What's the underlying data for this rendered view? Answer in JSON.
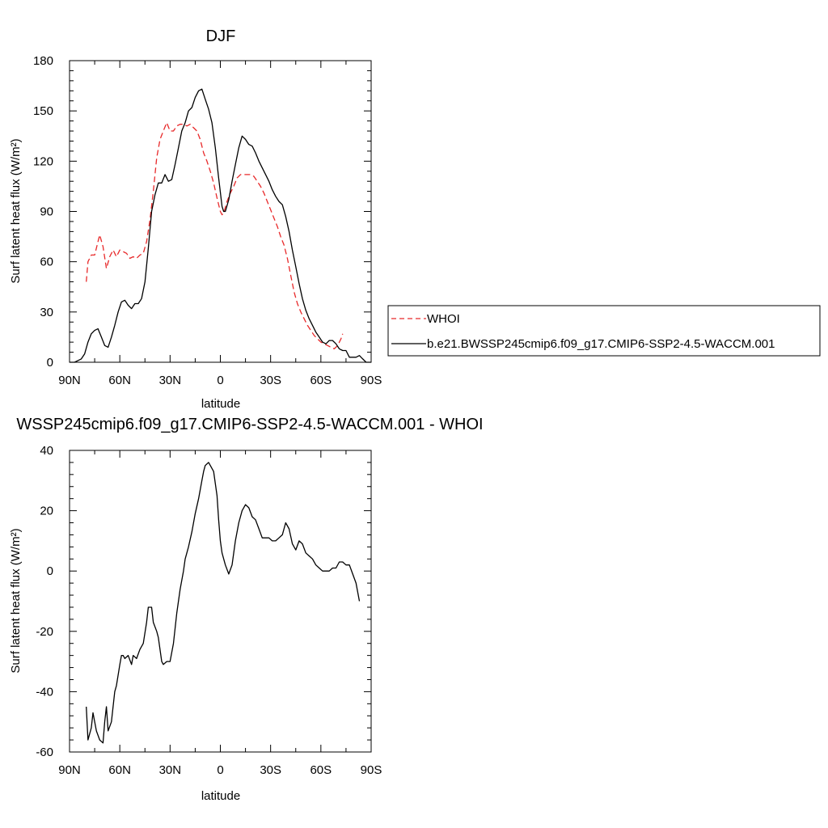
{
  "chart_data": [
    {
      "type": "line",
      "title": "DJF",
      "xlabel": "latitude",
      "ylabel": "Surf latent heat flux (W/m²)",
      "xlim": [
        90,
        -90
      ],
      "ylim": [
        0,
        180
      ],
      "xticks": [
        90,
        60,
        30,
        0,
        -30,
        -60,
        -90
      ],
      "xtick_labels": [
        "90N",
        "60N",
        "30N",
        "0",
        "30S",
        "60S",
        "90S"
      ],
      "yticks": [
        0,
        30,
        60,
        90,
        120,
        150,
        180
      ],
      "ytick_labels": [
        "0",
        "30",
        "60",
        "90",
        "120",
        "150",
        "180"
      ],
      "legend_position": "right",
      "series": [
        {
          "name": "WHOI",
          "color": "#e8292a",
          "dash": true,
          "points": [
            [
              80,
              48
            ],
            [
              79,
              60
            ],
            [
              77,
              64
            ],
            [
              75,
              64
            ],
            [
              73,
              72
            ],
            [
              72,
              76
            ],
            [
              70,
              69
            ],
            [
              68,
              56
            ],
            [
              66,
              63
            ],
            [
              64,
              67
            ],
            [
              62,
              63
            ],
            [
              60,
              67
            ],
            [
              58,
              66
            ],
            [
              56,
              65
            ],
            [
              54,
              62
            ],
            [
              52,
              63
            ],
            [
              50,
              62
            ],
            [
              48,
              64
            ],
            [
              46,
              65
            ],
            [
              44,
              72
            ],
            [
              42,
              85
            ],
            [
              40,
              102
            ],
            [
              38,
              122
            ],
            [
              36,
              133
            ],
            [
              34,
              138
            ],
            [
              32,
              143
            ],
            [
              30,
              138
            ],
            [
              28,
              138
            ],
            [
              26,
              141
            ],
            [
              24,
              142
            ],
            [
              22,
              142
            ],
            [
              20,
              141
            ],
            [
              18,
              142
            ],
            [
              16,
              140
            ],
            [
              14,
              138
            ],
            [
              12,
              133
            ],
            [
              10,
              125
            ],
            [
              8,
              120
            ],
            [
              6,
              114
            ],
            [
              4,
              107
            ],
            [
              2,
              98
            ],
            [
              0,
              90
            ],
            [
              -1,
              88
            ],
            [
              -2,
              89
            ],
            [
              -4,
              96
            ],
            [
              -6,
              101
            ],
            [
              -8,
              105
            ],
            [
              -10,
              110
            ],
            [
              -12,
              112
            ],
            [
              -14,
              112
            ],
            [
              -16,
              112
            ],
            [
              -18,
              112
            ],
            [
              -20,
              111
            ],
            [
              -22,
              108
            ],
            [
              -24,
              105
            ],
            [
              -26,
              101
            ],
            [
              -28,
              96
            ],
            [
              -30,
              91
            ],
            [
              -32,
              86
            ],
            [
              -34,
              81
            ],
            [
              -36,
              75
            ],
            [
              -38,
              70
            ],
            [
              -40,
              62
            ],
            [
              -42,
              52
            ],
            [
              -44,
              42
            ],
            [
              -46,
              35
            ],
            [
              -48,
              30
            ],
            [
              -50,
              26
            ],
            [
              -52,
              22
            ],
            [
              -54,
              19
            ],
            [
              -56,
              16
            ],
            [
              -58,
              14
            ],
            [
              -60,
              12
            ],
            [
              -62,
              11
            ],
            [
              -64,
              10
            ],
            [
              -66,
              9
            ],
            [
              -68,
              8
            ],
            [
              -70,
              10
            ],
            [
              -72,
              14
            ],
            [
              -73,
              17
            ]
          ]
        },
        {
          "name": "b.e21.BWSSP245cmip6.f09_g17.CMIP6-SSP2-4.5-WACCM.001",
          "color": "#000000",
          "dash": false,
          "points": [
            [
              90,
              0
            ],
            [
              87,
              0
            ],
            [
              85,
              1
            ],
            [
              83,
              2
            ],
            [
              81,
              5
            ],
            [
              79,
              12
            ],
            [
              77,
              17
            ],
            [
              75,
              19
            ],
            [
              73,
              20
            ],
            [
              71,
              15
            ],
            [
              69,
              10
            ],
            [
              67,
              9
            ],
            [
              65,
              15
            ],
            [
              63,
              22
            ],
            [
              61,
              30
            ],
            [
              59,
              36
            ],
            [
              57,
              37
            ],
            [
              55,
              34
            ],
            [
              53,
              32
            ],
            [
              51,
              35
            ],
            [
              49,
              35
            ],
            [
              47,
              38
            ],
            [
              45,
              48
            ],
            [
              43,
              68
            ],
            [
              41,
              90
            ],
            [
              39,
              100
            ],
            [
              37,
              107
            ],
            [
              35,
              107
            ],
            [
              33,
              112
            ],
            [
              31,
              108
            ],
            [
              29,
              109
            ],
            [
              27,
              118
            ],
            [
              25,
              128
            ],
            [
              23,
              138
            ],
            [
              21,
              143
            ],
            [
              19,
              150
            ],
            [
              17,
              152
            ],
            [
              15,
              158
            ],
            [
              13,
              162
            ],
            [
              11,
              163
            ],
            [
              9,
              157
            ],
            [
              7,
              151
            ],
            [
              5,
              143
            ],
            [
              3,
              128
            ],
            [
              1,
              110
            ],
            [
              -1,
              93
            ],
            [
              -2,
              90
            ],
            [
              -3,
              90
            ],
            [
              -5,
              97
            ],
            [
              -7,
              108
            ],
            [
              -9,
              118
            ],
            [
              -11,
              128
            ],
            [
              -13,
              135
            ],
            [
              -15,
              133
            ],
            [
              -17,
              130
            ],
            [
              -19,
              129
            ],
            [
              -21,
              125
            ],
            [
              -23,
              120
            ],
            [
              -25,
              116
            ],
            [
              -27,
              112
            ],
            [
              -29,
              108
            ],
            [
              -31,
              103
            ],
            [
              -33,
              99
            ],
            [
              -35,
              96
            ],
            [
              -37,
              94
            ],
            [
              -39,
              87
            ],
            [
              -41,
              78
            ],
            [
              -43,
              67
            ],
            [
              -45,
              57
            ],
            [
              -47,
              47
            ],
            [
              -49,
              38
            ],
            [
              -51,
              31
            ],
            [
              -53,
              26
            ],
            [
              -55,
              22
            ],
            [
              -57,
              18
            ],
            [
              -59,
              15
            ],
            [
              -61,
              12
            ],
            [
              -63,
              11
            ],
            [
              -65,
              13
            ],
            [
              -67,
              13
            ],
            [
              -69,
              11
            ],
            [
              -71,
              8
            ],
            [
              -73,
              7
            ],
            [
              -75,
              7
            ],
            [
              -77,
              3
            ],
            [
              -79,
              3
            ],
            [
              -81,
              3
            ],
            [
              -83,
              4
            ],
            [
              -85,
              2
            ],
            [
              -87,
              0
            ],
            [
              -90,
              0
            ]
          ]
        }
      ]
    },
    {
      "type": "line",
      "title": "WSSP245cmip6.f09_g17.CMIP6-SSP2-4.5-WACCM.001 - WHOI",
      "xlabel": "latitude",
      "ylabel": "Surf latent heat flux (W/m²)",
      "xlim": [
        90,
        -90
      ],
      "ylim": [
        -60,
        40
      ],
      "xticks": [
        90,
        60,
        30,
        0,
        -30,
        -60,
        -90
      ],
      "xtick_labels": [
        "90N",
        "60N",
        "30N",
        "0",
        "30S",
        "60S",
        "90S"
      ],
      "yticks": [
        -60,
        -40,
        -20,
        0,
        20,
        40
      ],
      "ytick_labels": [
        "-60",
        "-40",
        "-20",
        "0",
        "20",
        "40"
      ],
      "series": [
        {
          "color": "#000000",
          "dash": false,
          "points": [
            [
              80,
              -45
            ],
            [
              79,
              -56
            ],
            [
              77,
              -52
            ],
            [
              76,
              -47
            ],
            [
              74,
              -53
            ],
            [
              72,
              -56
            ],
            [
              70,
              -57
            ],
            [
              69,
              -50
            ],
            [
              68,
              -45
            ],
            [
              67,
              -53
            ],
            [
              65,
              -50
            ],
            [
              63,
              -40
            ],
            [
              62,
              -38
            ],
            [
              60,
              -31
            ],
            [
              59,
              -28
            ],
            [
              58,
              -28
            ],
            [
              57,
              -29
            ],
            [
              55,
              -28
            ],
            [
              53,
              -31
            ],
            [
              52,
              -28
            ],
            [
              50,
              -29
            ],
            [
              48,
              -26
            ],
            [
              46,
              -24
            ],
            [
              44,
              -17
            ],
            [
              43,
              -12
            ],
            [
              41,
              -12
            ],
            [
              40,
              -17
            ],
            [
              38,
              -20
            ],
            [
              37,
              -22
            ],
            [
              35,
              -30
            ],
            [
              34,
              -31
            ],
            [
              32,
              -30
            ],
            [
              30,
              -30
            ],
            [
              28,
              -24
            ],
            [
              26,
              -14
            ],
            [
              24,
              -6
            ],
            [
              22,
              0
            ],
            [
              21,
              4
            ],
            [
              19,
              8
            ],
            [
              17,
              13
            ],
            [
              15,
              19
            ],
            [
              13,
              24
            ],
            [
              11,
              30
            ],
            [
              10,
              33
            ],
            [
              9,
              35
            ],
            [
              7,
              36
            ],
            [
              6,
              35
            ],
            [
              4,
              33
            ],
            [
              2,
              25
            ],
            [
              1,
              17
            ],
            [
              0,
              10
            ],
            [
              -1,
              6
            ],
            [
              -3,
              2
            ],
            [
              -5,
              -1
            ],
            [
              -7,
              2
            ],
            [
              -9,
              10
            ],
            [
              -11,
              16
            ],
            [
              -13,
              20
            ],
            [
              -15,
              22
            ],
            [
              -17,
              21
            ],
            [
              -19,
              18
            ],
            [
              -21,
              17
            ],
            [
              -23,
              14
            ],
            [
              -25,
              11
            ],
            [
              -27,
              11
            ],
            [
              -29,
              11
            ],
            [
              -31,
              10
            ],
            [
              -33,
              10
            ],
            [
              -35,
              11
            ],
            [
              -37,
              12
            ],
            [
              -39,
              16
            ],
            [
              -41,
              14
            ],
            [
              -43,
              9
            ],
            [
              -45,
              7
            ],
            [
              -47,
              10
            ],
            [
              -49,
              9
            ],
            [
              -51,
              6
            ],
            [
              -53,
              5
            ],
            [
              -55,
              4
            ],
            [
              -57,
              2
            ],
            [
              -59,
              1
            ],
            [
              -61,
              0
            ],
            [
              -63,
              0
            ],
            [
              -65,
              0
            ],
            [
              -67,
              1
            ],
            [
              -69,
              1
            ],
            [
              -71,
              3
            ],
            [
              -73,
              3
            ],
            [
              -75,
              2
            ],
            [
              -77,
              2
            ],
            [
              -79,
              -1
            ],
            [
              -81,
              -4
            ],
            [
              -83,
              -10
            ]
          ]
        }
      ]
    }
  ]
}
